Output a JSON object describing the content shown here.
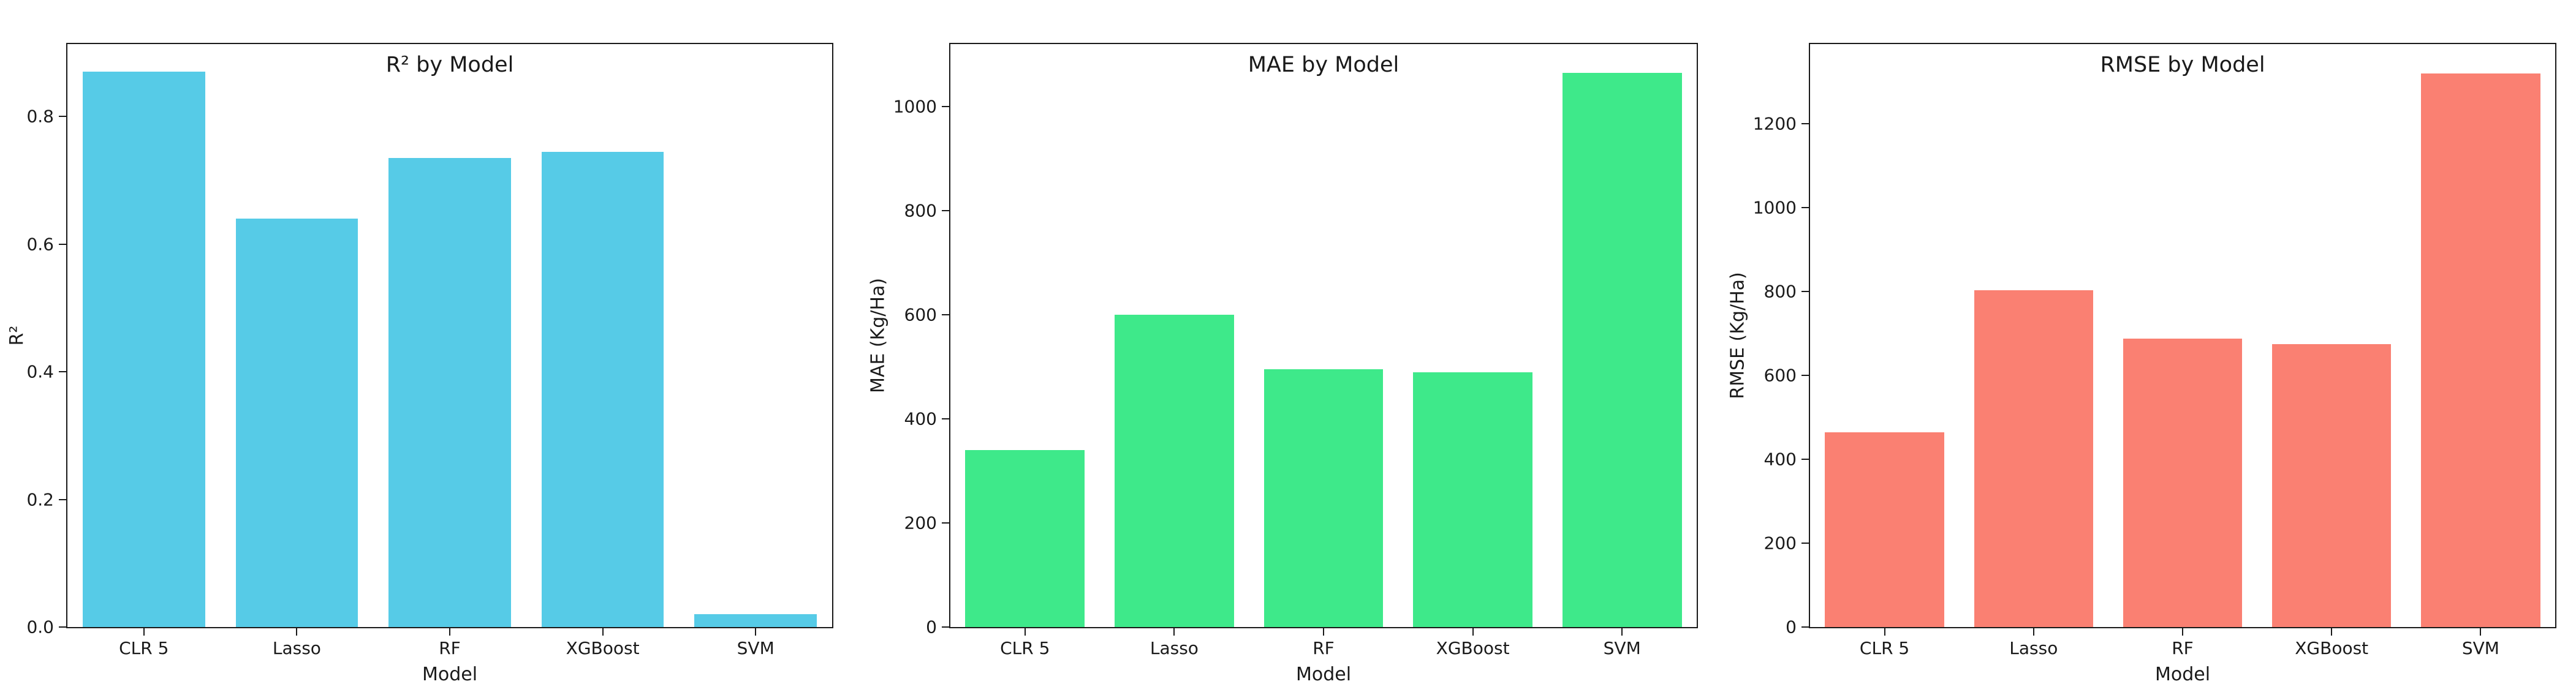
{
  "figure": {
    "background": "#ffffff",
    "axis_color": "#1a1a1a"
  },
  "chart_data": [
    {
      "type": "bar",
      "title": "R² by Model",
      "xlabel": "Model",
      "ylabel": "R²",
      "categories": [
        "CLR 5",
        "Lasso",
        "RF",
        "XGBoost",
        "SVM"
      ],
      "values": [
        0.87,
        0.64,
        0.735,
        0.745,
        0.02
      ],
      "bar_color": "#56cbe7",
      "yticks": [
        0.0,
        0.2,
        0.4,
        0.6,
        0.8
      ],
      "ytick_labels": [
        "0.0",
        "0.2",
        "0.4",
        "0.6",
        "0.8"
      ],
      "ylim": [
        0,
        0.9135
      ],
      "grid": false,
      "legend": "none"
    },
    {
      "type": "bar",
      "title": "MAE by Model",
      "xlabel": "Model",
      "ylabel": "MAE (Kg/Ha)",
      "categories": [
        "CLR 5",
        "Lasso",
        "RF",
        "XGBoost",
        "SVM"
      ],
      "values": [
        340,
        600,
        495,
        489,
        1065
      ],
      "bar_color": "#3ee98a",
      "yticks": [
        0,
        200,
        400,
        600,
        800,
        1000
      ],
      "ytick_labels": [
        "0",
        "200",
        "400",
        "600",
        "800",
        "1000"
      ],
      "ylim": [
        0,
        1120
      ],
      "grid": false,
      "legend": "none"
    },
    {
      "type": "bar",
      "title": "RMSE by Model",
      "xlabel": "Model",
      "ylabel": "RMSE (Kg/Ha)",
      "categories": [
        "CLR 5",
        "Lasso",
        "RF",
        "XGBoost",
        "SVM"
      ],
      "values": [
        465,
        803,
        687,
        675,
        1320
      ],
      "bar_color": "#fa8072",
      "yticks": [
        0,
        200,
        400,
        600,
        800,
        1000,
        1200
      ],
      "ytick_labels": [
        "0",
        "200",
        "400",
        "600",
        "800",
        "1000",
        "1200"
      ],
      "ylim": [
        0,
        1390
      ],
      "grid": false,
      "legend": "none"
    }
  ]
}
